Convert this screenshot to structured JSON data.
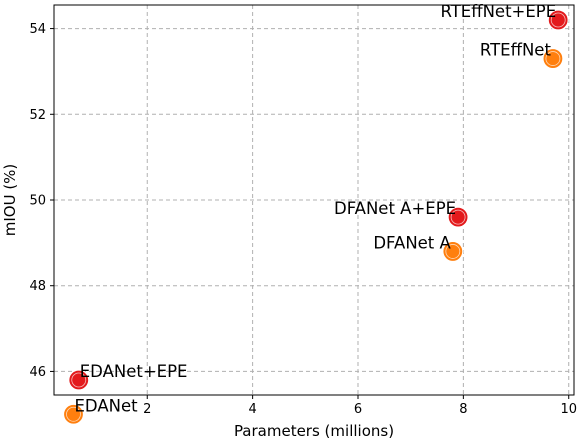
{
  "chart_data": {
    "type": "scatter",
    "title": "",
    "xlabel": "Parameters (millions)",
    "ylabel": "mIOU (%)",
    "xlim": [
      0.23,
      10.1
    ],
    "ylim": [
      45.45,
      54.55
    ],
    "xticks": [
      2,
      4,
      6,
      8,
      10
    ],
    "yticks": [
      46,
      48,
      50,
      52,
      54
    ],
    "grid": true,
    "legend": "none",
    "colors": {
      "base": "#ff7f0e",
      "epe": "#e31a1c"
    },
    "points": [
      {
        "label": "EDANet",
        "x": 0.6,
        "y": 45.0,
        "group": "base"
      },
      {
        "label": "EDANet+EPE",
        "x": 0.7,
        "y": 45.8,
        "group": "epe"
      },
      {
        "label": "DFANet A",
        "x": 7.8,
        "y": 48.8,
        "group": "base"
      },
      {
        "label": "DFANet A+EPE",
        "x": 7.9,
        "y": 49.6,
        "group": "epe"
      },
      {
        "label": "RTEffNet",
        "x": 9.7,
        "y": 53.3,
        "group": "base"
      },
      {
        "label": "RTEffNet+EPE",
        "x": 9.8,
        "y": 54.2,
        "group": "epe"
      }
    ]
  }
}
